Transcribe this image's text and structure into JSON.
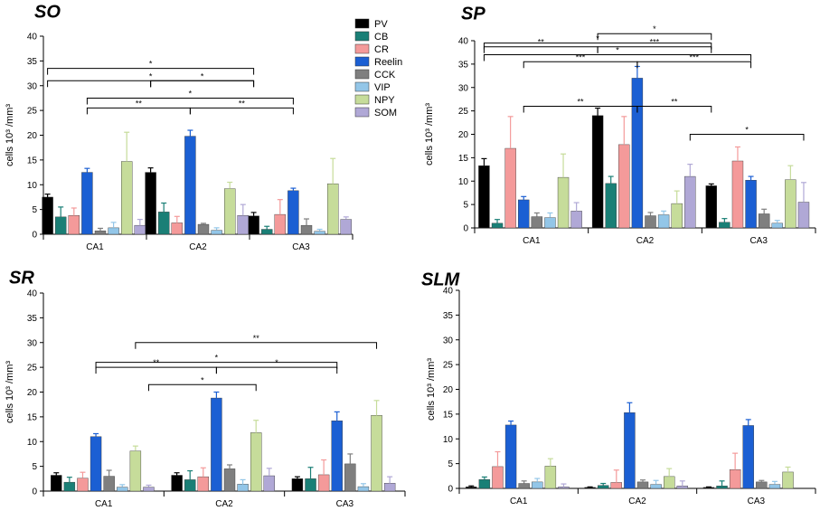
{
  "colors": {
    "PV": "#000000",
    "CB": "#1a7f76",
    "CR": "#f49a9a",
    "Reelin": "#1b5fd3",
    "CCK": "#7f7f7f",
    "VIP": "#93c6e8",
    "NPY": "#c6dc9a",
    "SOM": "#b0a8d6"
  },
  "legend": [
    "PV",
    "CB",
    "CR",
    "Reelin",
    "CCK",
    "VIP",
    "NPY",
    "SOM"
  ],
  "chart_data": [
    {
      "type": "bar",
      "title": "SO",
      "ylabel": "cells 10³ /mm³",
      "ylim": [
        0,
        40
      ],
      "yticks": [
        0,
        5,
        10,
        15,
        20,
        25,
        30,
        35,
        40
      ],
      "categories": [
        "CA1",
        "CA2",
        "CA3"
      ],
      "series": [
        {
          "name": "PV",
          "values": [
            7.5,
            12.5,
            3.7
          ],
          "errors": [
            0.6,
            0.9,
            0.7
          ]
        },
        {
          "name": "CB",
          "values": [
            3.5,
            4.5,
            1.0
          ],
          "errors": [
            2.0,
            1.8,
            0.6
          ]
        },
        {
          "name": "CR",
          "values": [
            3.8,
            2.3,
            4.0
          ],
          "errors": [
            1.5,
            1.3,
            3.0
          ]
        },
        {
          "name": "Reelin",
          "values": [
            12.5,
            19.8,
            8.8
          ],
          "errors": [
            0.8,
            1.2,
            0.5
          ]
        },
        {
          "name": "CCK",
          "values": [
            0.7,
            2.0,
            1.8
          ],
          "errors": [
            0.5,
            0.2,
            1.3
          ]
        },
        {
          "name": "VIP",
          "values": [
            1.3,
            0.8,
            0.6
          ],
          "errors": [
            1.1,
            0.5,
            0.4
          ]
        },
        {
          "name": "NPY",
          "values": [
            14.7,
            9.2,
            10.2
          ],
          "errors": [
            5.9,
            1.3,
            5.1
          ]
        },
        {
          "name": "SOM",
          "values": [
            1.8,
            3.8,
            3.0
          ],
          "errors": [
            1.2,
            2.2,
            0.5
          ]
        }
      ],
      "brackets": [
        {
          "label": "*",
          "from": [
            0,
            "PV"
          ],
          "to": [
            2,
            "PV"
          ],
          "level": 33.5
        },
        {
          "label": "*",
          "from": [
            0,
            "PV"
          ],
          "to": [
            2,
            "PV"
          ],
          "mid": [
            1,
            "PV"
          ],
          "level": 31.0
        },
        {
          "label": "*",
          "from": [
            1,
            "PV"
          ],
          "to": [
            2,
            "PV"
          ],
          "mid": [
            1,
            "PV"
          ],
          "level": 31.0
        },
        {
          "label": "*",
          "from": [
            0,
            "Reelin"
          ],
          "to": [
            2,
            "Reelin"
          ],
          "level": 27.5
        },
        {
          "label": "**",
          "from": [
            0,
            "Reelin"
          ],
          "to": [
            1,
            "Reelin"
          ],
          "level": 25.5
        },
        {
          "label": "**",
          "from": [
            1,
            "Reelin"
          ],
          "to": [
            2,
            "Reelin"
          ],
          "level": 25.5
        }
      ]
    },
    {
      "type": "bar",
      "title": "SP",
      "ylabel": "cells 10³ /mm³",
      "ylim": [
        0,
        40
      ],
      "yticks": [
        0,
        5,
        10,
        15,
        20,
        25,
        30,
        35,
        40
      ],
      "categories": [
        "CA1",
        "CA2",
        "CA3"
      ],
      "series": [
        {
          "name": "PV",
          "values": [
            13.3,
            24.0,
            9.0
          ],
          "errors": [
            1.5,
            1.6,
            0.4
          ]
        },
        {
          "name": "CB",
          "values": [
            1.0,
            9.5,
            1.2
          ],
          "errors": [
            0.8,
            1.5,
            0.8
          ]
        },
        {
          "name": "CR",
          "values": [
            17.0,
            17.8,
            14.3
          ],
          "errors": [
            6.8,
            6.0,
            3.0
          ]
        },
        {
          "name": "Reelin",
          "values": [
            6.0,
            32.0,
            10.2
          ],
          "errors": [
            0.7,
            2.5,
            0.8
          ]
        },
        {
          "name": "CCK",
          "values": [
            2.4,
            2.6,
            3.0
          ],
          "errors": [
            0.8,
            0.7,
            1.0
          ]
        },
        {
          "name": "VIP",
          "values": [
            2.2,
            2.8,
            1.0
          ],
          "errors": [
            1.0,
            0.8,
            0.6
          ]
        },
        {
          "name": "NPY",
          "values": [
            10.8,
            5.2,
            10.3
          ],
          "errors": [
            5.0,
            2.7,
            3.0
          ]
        },
        {
          "name": "SOM",
          "values": [
            3.6,
            11.0,
            5.5
          ],
          "errors": [
            1.8,
            2.6,
            4.2
          ]
        }
      ],
      "brackets": [
        {
          "label": "*",
          "from": [
            0,
            "PV"
          ],
          "to": [
            2,
            "PV"
          ],
          "level": 39.5
        },
        {
          "label": "**",
          "from": [
            0,
            "PV"
          ],
          "to": [
            1,
            "PV"
          ],
          "level": 38.7
        },
        {
          "label": "***",
          "from": [
            1,
            "PV"
          ],
          "to": [
            2,
            "PV"
          ],
          "level": 38.7
        },
        {
          "label": "*",
          "from": [
            1,
            "PV"
          ],
          "to": [
            2,
            "PV"
          ],
          "level": 41.5
        },
        {
          "label": "*",
          "from": [
            0,
            "PV"
          ],
          "to": [
            2,
            "Reelin"
          ],
          "level": 37.0
        },
        {
          "label": "***",
          "from": [
            0,
            "Reelin"
          ],
          "to": [
            1,
            "Reelin"
          ],
          "level": 35.5
        },
        {
          "label": "***",
          "from": [
            1,
            "Reelin"
          ],
          "to": [
            2,
            "Reelin"
          ],
          "level": 35.5
        },
        {
          "label": "**",
          "from": [
            0,
            "Reelin"
          ],
          "to": [
            1,
            "Reelin"
          ],
          "level": 26.0
        },
        {
          "label": "**",
          "from": [
            1,
            "Reelin"
          ],
          "to": [
            2,
            "PV"
          ],
          "level": 26.0
        },
        {
          "label": "*",
          "from": [
            1,
            "SOM"
          ],
          "to": [
            2,
            "SOM"
          ],
          "level": 20.0
        }
      ]
    },
    {
      "type": "bar",
      "title": "SR",
      "ylabel": "cells 10³ /mm³",
      "ylim": [
        0,
        40
      ],
      "yticks": [
        0,
        5,
        10,
        15,
        20,
        25,
        30,
        35,
        40
      ],
      "categories": [
        "CA1",
        "CA2",
        "CA3"
      ],
      "series": [
        {
          "name": "PV",
          "values": [
            3.2,
            3.2,
            2.5
          ],
          "errors": [
            0.5,
            0.5,
            0.4
          ]
        },
        {
          "name": "CB",
          "values": [
            1.8,
            2.3,
            2.5
          ],
          "errors": [
            1.0,
            1.8,
            2.3
          ]
        },
        {
          "name": "CR",
          "values": [
            2.6,
            2.9,
            3.3
          ],
          "errors": [
            1.2,
            1.8,
            3.0
          ]
        },
        {
          "name": "Reelin",
          "values": [
            11.0,
            18.8,
            14.2
          ],
          "errors": [
            0.6,
            1.2,
            1.8
          ]
        },
        {
          "name": "CCK",
          "values": [
            3.0,
            4.5,
            5.5
          ],
          "errors": [
            1.2,
            0.8,
            2.0
          ]
        },
        {
          "name": "VIP",
          "values": [
            0.8,
            1.4,
            0.9
          ],
          "errors": [
            0.5,
            0.9,
            0.6
          ]
        },
        {
          "name": "NPY",
          "values": [
            8.1,
            11.8,
            15.3
          ],
          "errors": [
            1.0,
            2.5,
            3.0
          ]
        },
        {
          "name": "SOM",
          "values": [
            0.8,
            3.1,
            1.6
          ],
          "errors": [
            0.4,
            1.5,
            1.3
          ]
        }
      ],
      "brackets": [
        {
          "label": "**",
          "from": [
            0,
            "NPY"
          ],
          "to": [
            2,
            "NPY"
          ],
          "level": 30.0
        },
        {
          "label": "*",
          "from": [
            0,
            "Reelin"
          ],
          "to": [
            2,
            "Reelin"
          ],
          "level": 26.0
        },
        {
          "label": "**",
          "from": [
            0,
            "Reelin"
          ],
          "to": [
            1,
            "Reelin"
          ],
          "level": 25.0
        },
        {
          "label": "*",
          "from": [
            1,
            "Reelin"
          ],
          "to": [
            2,
            "Reelin"
          ],
          "level": 25.0
        },
        {
          "label": "*",
          "from": [
            0,
            "SOM"
          ],
          "to": [
            1,
            "NPY"
          ],
          "level": 21.5
        }
      ]
    },
    {
      "type": "bar",
      "title": "SLM",
      "ylabel": "cells 10³ /mm³",
      "ylim": [
        0,
        40
      ],
      "yticks": [
        0,
        5,
        10,
        15,
        20,
        25,
        30,
        35,
        40
      ],
      "categories": [
        "CA1",
        "CA2",
        "CA3"
      ],
      "series": [
        {
          "name": "PV",
          "values": [
            0.3,
            0.2,
            0.2
          ],
          "errors": [
            0.2,
            0.1,
            0.1
          ]
        },
        {
          "name": "CB",
          "values": [
            1.8,
            0.6,
            0.5
          ],
          "errors": [
            0.5,
            0.4,
            1.0
          ]
        },
        {
          "name": "CR",
          "values": [
            4.4,
            1.2,
            3.8
          ],
          "errors": [
            3.0,
            2.5,
            3.3
          ]
        },
        {
          "name": "Reelin",
          "values": [
            12.8,
            15.3,
            12.7
          ],
          "errors": [
            0.8,
            2.0,
            1.2
          ]
        },
        {
          "name": "CCK",
          "values": [
            1.0,
            1.3,
            1.3
          ],
          "errors": [
            0.5,
            0.4,
            0.3
          ]
        },
        {
          "name": "VIP",
          "values": [
            1.3,
            0.8,
            0.8
          ],
          "errors": [
            0.7,
            0.8,
            0.6
          ]
        },
        {
          "name": "NPY",
          "values": [
            4.5,
            2.4,
            3.3
          ],
          "errors": [
            1.5,
            1.6,
            1.0
          ]
        },
        {
          "name": "SOM",
          "values": [
            0.3,
            0.5,
            0.0
          ],
          "errors": [
            0.6,
            1.0,
            0.0
          ]
        }
      ],
      "brackets": []
    }
  ]
}
